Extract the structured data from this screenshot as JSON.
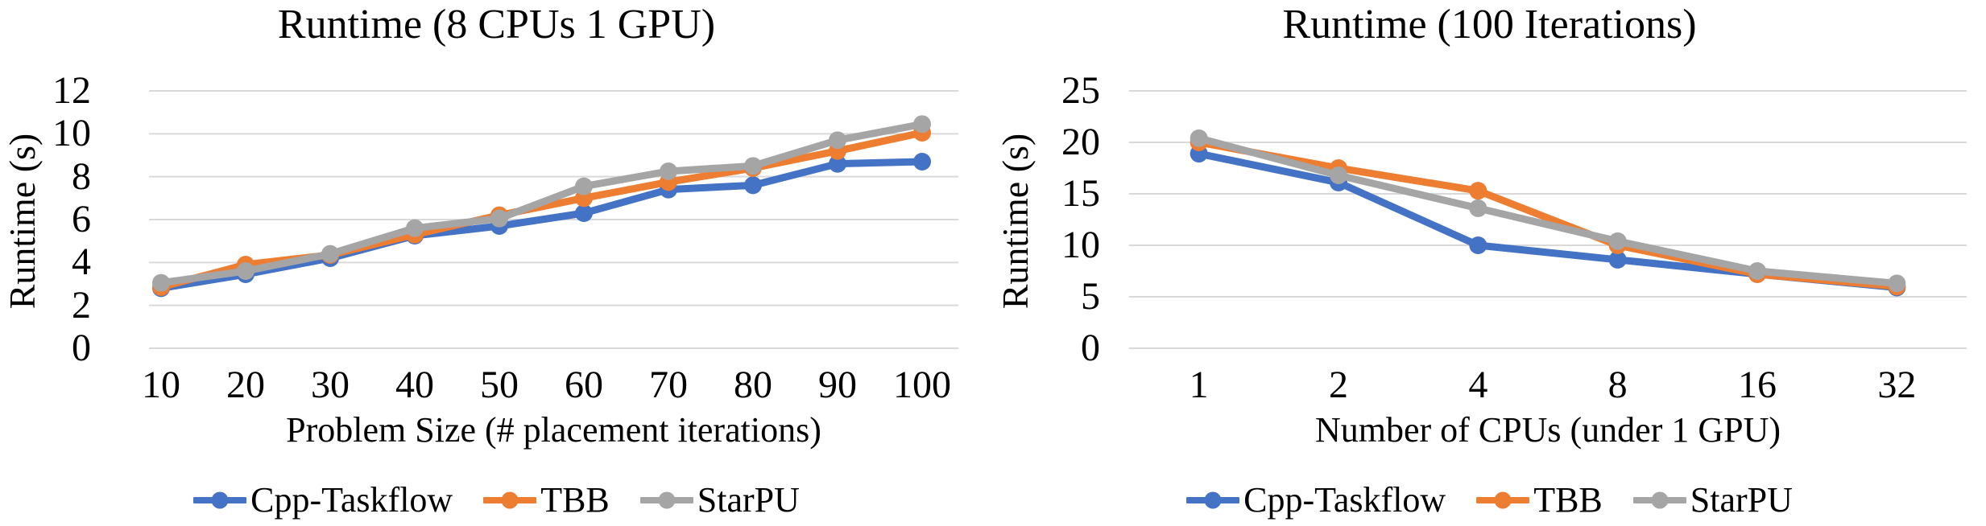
{
  "page": {
    "background": "#FFFFFF",
    "text_color": "#000000",
    "gridline_color": "#D9D9D9"
  },
  "chart_data": [
    {
      "type": "line",
      "title": "Runtime (8 CPUs 1 GPU)",
      "xlabel": "Problem Size (# placement iterations)",
      "ylabel": "Runtime (s)",
      "categories": [
        "10",
        "20",
        "30",
        "40",
        "50",
        "60",
        "70",
        "80",
        "90",
        "100"
      ],
      "ylim": [
        0,
        12
      ],
      "yticks": [
        0,
        2,
        4,
        6,
        8,
        10,
        12
      ],
      "grid": true,
      "legend_position": "bottom",
      "series": [
        {
          "name": "Cpp-Taskflow",
          "color": "#4472C4",
          "values": [
            2.8,
            3.45,
            4.2,
            5.25,
            5.7,
            6.3,
            7.4,
            7.6,
            8.6,
            8.7
          ]
        },
        {
          "name": "TBB",
          "color": "#ED7D31",
          "values": [
            2.85,
            3.9,
            4.35,
            5.3,
            6.2,
            7.0,
            7.75,
            8.4,
            9.2,
            10.05
          ]
        },
        {
          "name": "StarPU",
          "color": "#A5A5A5",
          "values": [
            3.05,
            3.6,
            4.4,
            5.6,
            6.05,
            7.55,
            8.25,
            8.5,
            9.7,
            10.45
          ]
        }
      ]
    },
    {
      "type": "line",
      "title": "Runtime (100 Iterations)",
      "xlabel": "Number of CPUs (under 1 GPU)",
      "ylabel": "Runtime (s)",
      "categories": [
        "1",
        "2",
        "4",
        "8",
        "16",
        "32"
      ],
      "ylim": [
        0,
        25
      ],
      "yticks": [
        0,
        5,
        10,
        15,
        20,
        25
      ],
      "grid": true,
      "legend_position": "bottom",
      "series": [
        {
          "name": "Cpp-Taskflow",
          "color": "#4472C4",
          "values": [
            18.9,
            16.1,
            10.0,
            8.6,
            7.2,
            5.9
          ]
        },
        {
          "name": "TBB",
          "color": "#ED7D31",
          "values": [
            20.0,
            17.5,
            15.3,
            10.0,
            7.2,
            6.0
          ]
        },
        {
          "name": "StarPU",
          "color": "#A5A5A5",
          "values": [
            20.4,
            16.8,
            13.6,
            10.4,
            7.5,
            6.3
          ]
        }
      ]
    }
  ]
}
